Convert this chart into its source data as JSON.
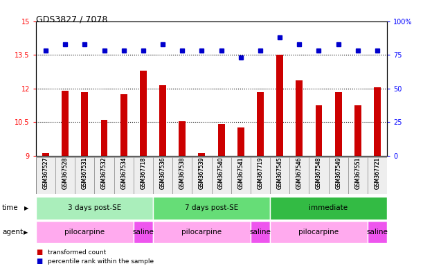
{
  "title": "GDS3827 / 7078",
  "samples": [
    "GSM367527",
    "GSM367528",
    "GSM367531",
    "GSM367532",
    "GSM367534",
    "GSM367718",
    "GSM367536",
    "GSM367538",
    "GSM367539",
    "GSM367540",
    "GSM367541",
    "GSM367719",
    "GSM367545",
    "GSM367546",
    "GSM367548",
    "GSM367549",
    "GSM367551",
    "GSM367721"
  ],
  "bar_values": [
    9.1,
    11.9,
    11.85,
    10.6,
    11.75,
    12.8,
    12.15,
    10.55,
    9.1,
    10.4,
    10.25,
    11.85,
    13.5,
    12.35,
    11.25,
    11.85,
    11.25,
    12.05
  ],
  "percentile_values": [
    78,
    83,
    83,
    78,
    78,
    78,
    83,
    78,
    78,
    78,
    73,
    78,
    88,
    83,
    78,
    83,
    78,
    78
  ],
  "bar_color": "#cc0000",
  "dot_color": "#0000cc",
  "ylim_left": [
    9,
    15
  ],
  "ylim_right": [
    0,
    100
  ],
  "yticks_left": [
    9,
    10.5,
    12,
    13.5,
    15
  ],
  "ytick_labels_left": [
    "9",
    "10.5",
    "12",
    "13.5",
    "15"
  ],
  "yticks_right": [
    0,
    25,
    50,
    75,
    100
  ],
  "ytick_labels_right": [
    "0",
    "25",
    "50",
    "75",
    "100%"
  ],
  "dotted_lines": [
    10.5,
    12,
    13.5
  ],
  "time_groups": [
    {
      "label": "3 days post-SE",
      "start": 0,
      "end": 5,
      "color": "#aaeebb"
    },
    {
      "label": "7 days post-SE",
      "start": 6,
      "end": 11,
      "color": "#66dd77"
    },
    {
      "label": "immediate",
      "start": 12,
      "end": 17,
      "color": "#33bb44"
    }
  ],
  "agent_groups": [
    {
      "label": "pilocarpine",
      "start": 0,
      "end": 4,
      "color": "#ffaaee"
    },
    {
      "label": "saline",
      "start": 5,
      "end": 5,
      "color": "#ee55ee"
    },
    {
      "label": "pilocarpine",
      "start": 6,
      "end": 10,
      "color": "#ffaaee"
    },
    {
      "label": "saline",
      "start": 11,
      "end": 11,
      "color": "#ee55ee"
    },
    {
      "label": "pilocarpine",
      "start": 12,
      "end": 16,
      "color": "#ffaaee"
    },
    {
      "label": "saline",
      "start": 17,
      "end": 17,
      "color": "#ee55ee"
    }
  ],
  "legend_items": [
    {
      "label": "transformed count",
      "color": "#cc0000"
    },
    {
      "label": "percentile rank within the sample",
      "color": "#0000cc"
    }
  ],
  "bar_width": 0.35,
  "background_color": "#ffffff"
}
